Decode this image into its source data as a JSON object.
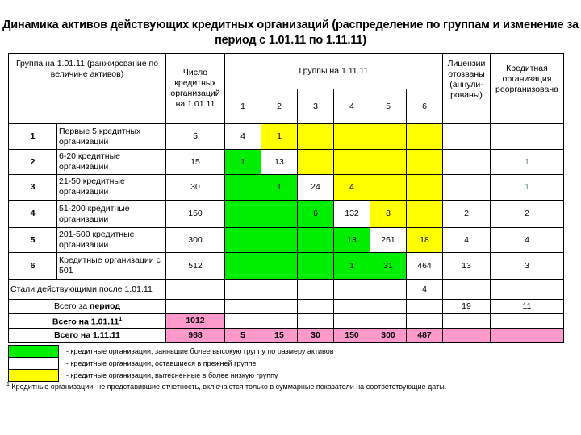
{
  "title": {
    "line1": "Динамика активов действующих кредитных организаций  (распределение по группам и изменение за",
    "line2": "период с 1.01.11 по 1.11.11)"
  },
  "header": {
    "group": "Группа на 1.01.11 (ранжирсвание по величине активов)",
    "count": "Число кредитных организаций на 1.01.11",
    "groups_new": "Группы на 1.11.11",
    "group_nums": [
      "1",
      "2",
      "3",
      "4",
      "5",
      "6"
    ],
    "licenses": "Лицензии отозваны (аннули-рованы)",
    "reorg": "Кредитная организация реорганизована"
  },
  "colors": {
    "green": "#00ee00",
    "yellow": "#ffff00",
    "pink": "#ff99cc",
    "white": "#ffffff"
  },
  "rows": [
    {
      "num": "1",
      "name": "Первые 5 кредитных организаций",
      "count": "5",
      "cells": [
        {
          "v": "4",
          "c": "w"
        },
        {
          "v": "1",
          "c": "y"
        },
        {
          "v": "",
          "c": "y"
        },
        {
          "v": "",
          "c": "y"
        },
        {
          "v": "",
          "c": "y"
        },
        {
          "v": "",
          "c": "y"
        }
      ],
      "lic": "",
      "reorg": ""
    },
    {
      "num": "2",
      "name": "6-20 кредитные организации",
      "count": "15",
      "cells": [
        {
          "v": "1",
          "c": "g"
        },
        {
          "v": "13",
          "c": "w"
        },
        {
          "v": "",
          "c": "y"
        },
        {
          "v": "",
          "c": "y"
        },
        {
          "v": "",
          "c": "y"
        },
        {
          "v": "",
          "c": "y"
        }
      ],
      "lic": "",
      "reorg": "1"
    },
    {
      "num": "3",
      "name": "21-50 кредитные организации",
      "count": "30",
      "cells": [
        {
          "v": "",
          "c": "g"
        },
        {
          "v": "1",
          "c": "g"
        },
        {
          "v": "24",
          "c": "w"
        },
        {
          "v": "4",
          "c": "y"
        },
        {
          "v": "",
          "c": "y"
        },
        {
          "v": "",
          "c": "y"
        }
      ],
      "lic": "",
      "reorg": "1"
    },
    {
      "num": "4",
      "name": "51-200 кредитные организации",
      "count": "150",
      "cells": [
        {
          "v": "",
          "c": "g"
        },
        {
          "v": "",
          "c": "g"
        },
        {
          "v": "6",
          "c": "g"
        },
        {
          "v": "132",
          "c": "w"
        },
        {
          "v": "8",
          "c": "y"
        },
        {
          "v": "",
          "c": "y"
        }
      ],
      "lic": "2",
      "reorg": "2"
    },
    {
      "num": "5",
      "name": "201-500 кредитные организации",
      "count": "300",
      "cells": [
        {
          "v": "",
          "c": "g"
        },
        {
          "v": "",
          "c": "g"
        },
        {
          "v": "",
          "c": "g"
        },
        {
          "v": "13",
          "c": "g"
        },
        {
          "v": "261",
          "c": "w"
        },
        {
          "v": "18",
          "c": "y"
        }
      ],
      "lic": "4",
      "reorg": "4"
    },
    {
      "num": "6",
      "name": "Кредитные организации с 501",
      "count": "512",
      "cells": [
        {
          "v": "",
          "c": "g"
        },
        {
          "v": "",
          "c": "g"
        },
        {
          "v": "",
          "c": "g"
        },
        {
          "v": "1",
          "c": "g"
        },
        {
          "v": "31",
          "c": "g"
        },
        {
          "v": "464",
          "c": "w"
        }
      ],
      "lic": "13",
      "reorg": "3"
    }
  ],
  "new_active": {
    "label": "Стали действующими после 1.01.11",
    "cells": [
      "",
      "",
      "",
      "",
      "",
      "4"
    ]
  },
  "total_period": {
    "label_a": "Всего за ",
    "label_b": "период",
    "lic": "19",
    "reorg": "11"
  },
  "total_start": {
    "label": "Всего на 1.01.11",
    "sup": "1",
    "count": "1012"
  },
  "total_end": {
    "label": "Всего на 1.11.11",
    "count": "988",
    "cells": [
      "5",
      "15",
      "30",
      "150",
      "300",
      "487"
    ]
  },
  "legend": [
    {
      "color": "green",
      "text": "- кредитные организации, занявшие более высокую группу по размеру активов"
    },
    {
      "color": "white",
      "text": "- кредитные организации, оставшиеся в прежней группе"
    },
    {
      "color": "yellow",
      "text": "- кредитные организации, вытесненные в более низкую группу"
    }
  ],
  "footnote": {
    "sup": "1",
    "text": " Кредитные организации, не представившие отчетность, включаются только в суммарные показатели на соответствующие даты."
  }
}
